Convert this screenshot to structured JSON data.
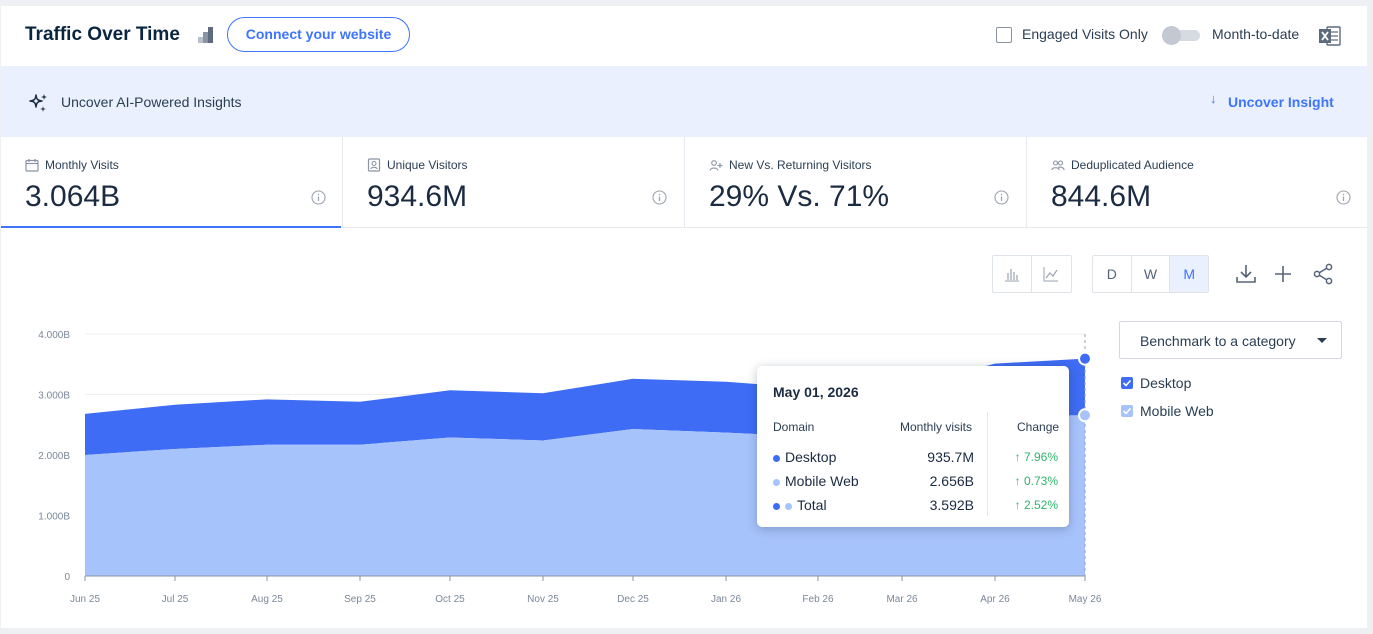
{
  "header": {
    "title": "Traffic Over Time",
    "connect_button": "Connect your website",
    "engaged_label": "Engaged Visits Only",
    "mtd_label": "Month-to-date"
  },
  "insights": {
    "label": "Uncover AI-Powered Insights",
    "link": "Uncover Insight"
  },
  "metrics": [
    {
      "label": "Monthly Visits",
      "value": "3.064B",
      "icon": "calendar-icon"
    },
    {
      "label": "Unique Visitors",
      "value": "934.6M",
      "icon": "user-card-icon"
    },
    {
      "label": "New Vs. Returning Visitors",
      "value": "29% Vs. 71%",
      "icon": "user-plus-icon"
    },
    {
      "label": "Deduplicated Audience",
      "value": "844.6M",
      "icon": "users-icon"
    }
  ],
  "toolbar": {
    "granularity": [
      "D",
      "W",
      "M"
    ],
    "selected": "M"
  },
  "benchmark": {
    "label": "Benchmark to a category"
  },
  "legend": [
    {
      "name": "Desktop",
      "color": "#3e6cf4"
    },
    {
      "name": "Mobile Web",
      "color": "#a7c3fb"
    }
  ],
  "tooltip": {
    "date": "May 01, 2026",
    "col_domain": "Domain",
    "col_visits": "Monthly visits",
    "col_change": "Change",
    "rows": [
      {
        "name": "Desktop",
        "value": "935.7M",
        "change": "7.96%"
      },
      {
        "name": "Mobile Web",
        "value": "2.656B",
        "change": "0.73%"
      },
      {
        "name": "Total",
        "value": "3.592B",
        "change": "2.52%"
      }
    ]
  },
  "chart_data": {
    "type": "area",
    "stacked": true,
    "categories": [
      "Jun 25",
      "Jul 25",
      "Aug 25",
      "Sep 25",
      "Oct 25",
      "Nov 25",
      "Dec 25",
      "Jan 26",
      "Feb 26",
      "Mar 26",
      "Apr 26",
      "May 26"
    ],
    "series": [
      {
        "name": "Mobile Web",
        "color": "#a7c3fb",
        "values": [
          2.0,
          2.1,
          2.17,
          2.17,
          2.29,
          2.24,
          2.43,
          2.37,
          2.3,
          2.33,
          2.64,
          2.656
        ]
      },
      {
        "name": "Desktop",
        "color": "#3e6cf4",
        "values": [
          0.68,
          0.73,
          0.75,
          0.71,
          0.78,
          0.78,
          0.83,
          0.84,
          0.8,
          0.78,
          0.87,
          0.936
        ]
      }
    ],
    "y_ticks": [
      "0",
      "1.000B",
      "2.000B",
      "3.000B",
      "4.000B"
    ],
    "ylim": [
      0,
      4
    ],
    "grid": true
  }
}
